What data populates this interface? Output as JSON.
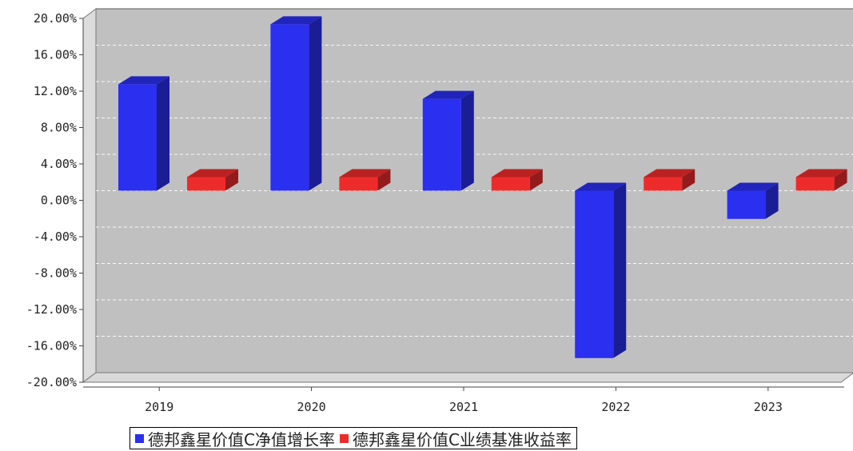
{
  "chart_data": {
    "type": "bar",
    "categories": [
      "2019",
      "2020",
      "2021",
      "2022",
      "2023"
    ],
    "series": [
      {
        "name": "德邦鑫星价值C净值增长率",
        "color": "#2b2ff0",
        "values": [
          11.7,
          18.3,
          10.1,
          -18.4,
          -3.1
        ]
      },
      {
        "name": "德邦鑫星价值C业绩基准收益率",
        "color": "#ee2b2b",
        "values": [
          1.5,
          1.5,
          1.5,
          1.5,
          1.5
        ]
      }
    ],
    "yticks": [
      "20.00%",
      "16.00%",
      "12.00%",
      "8.00%",
      "4.00%",
      "0.00%",
      "-4.00%",
      "-8.00%",
      "-12.00%",
      "-16.00%",
      "-20.00%"
    ],
    "ylim": [
      -20,
      20
    ],
    "grid": true,
    "legend_position": "bottom"
  }
}
